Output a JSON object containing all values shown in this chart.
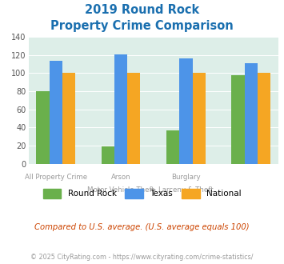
{
  "title_line1": "2019 Round Rock",
  "title_line2": "Property Crime Comparison",
  "round_rock": [
    80,
    19,
    37,
    98
  ],
  "texas": [
    114,
    121,
    116,
    111
  ],
  "national": [
    100,
    100,
    100,
    100
  ],
  "color_rr": "#6ab04c",
  "color_tx": "#4d94e8",
  "color_nat": "#f5a623",
  "ylim": [
    0,
    140
  ],
  "yticks": [
    0,
    20,
    40,
    60,
    80,
    100,
    120,
    140
  ],
  "plot_bg": "#ddeee8",
  "fig_bg": "#ffffff",
  "title_color": "#1a6faf",
  "subtitle_text": "Compared to U.S. average. (U.S. average equals 100)",
  "subtitle_color": "#cc4400",
  "footer_text": "© 2025 CityRating.com - https://www.cityrating.com/crime-statistics/",
  "footer_color": "#999999",
  "legend_labels": [
    "Round Rock",
    "Texas",
    "National"
  ],
  "label_top": [
    "All Property Crime",
    "Arson",
    "Burglary",
    ""
  ],
  "label_bot": [
    "",
    "Motor Vehicle Theft",
    "Larceny & Theft",
    ""
  ],
  "label_color": "#999999"
}
